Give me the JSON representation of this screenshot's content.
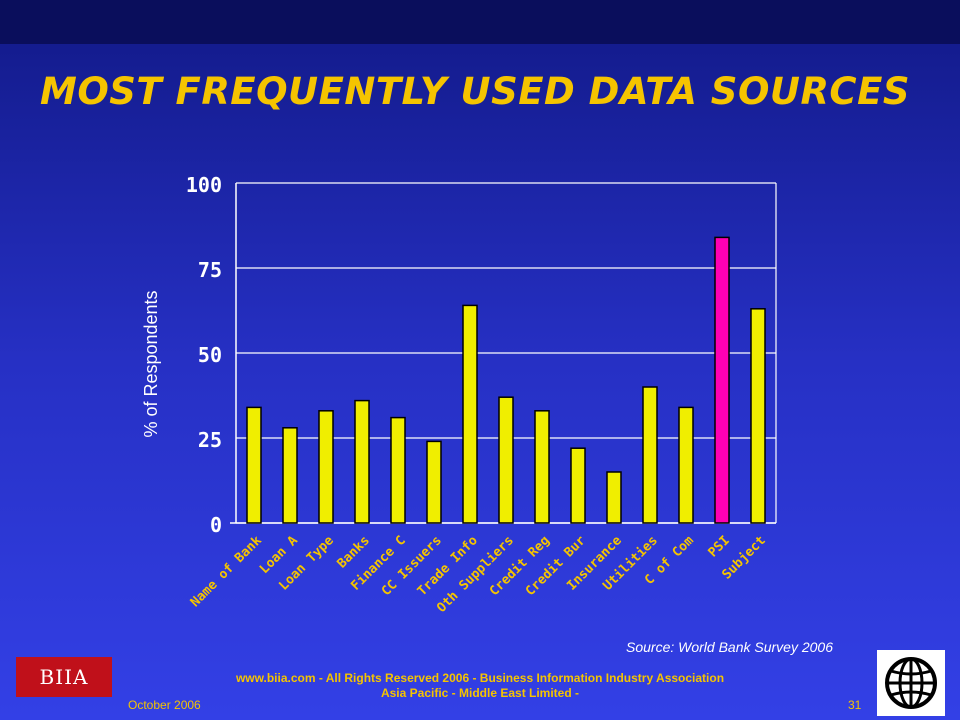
{
  "title": "MOST FREQUENTLY USED DATA SOURCES",
  "source_note": "Source: World Bank Survey 2006",
  "footer": {
    "line1": "www.biia.com  - All Rights Reserved 2006 -  Business Information Industry Association",
    "line2": "Asia Pacific - Middle East Limited -",
    "date": "October  2006",
    "page": "31"
  },
  "logos": {
    "left_text": "BIIA",
    "left_color": "#c0101a",
    "right_icon": "world-bank-globe-icon"
  },
  "colors": {
    "title": "#f5c400",
    "bar": "#f0ee00",
    "highlight_bar": "#ff00b4",
    "gridline": "#ffffff"
  },
  "chart_data": {
    "type": "bar",
    "title": "",
    "xlabel": "",
    "ylabel": "% of Respondents",
    "ylim": [
      0,
      100
    ],
    "yticks": [
      0,
      25,
      50,
      75,
      100
    ],
    "grid": true,
    "categories": [
      "Name of Bank",
      "Loan A",
      "Loan Type",
      "Banks",
      "Finance C",
      "CC Issuers",
      "Trade Info",
      "Oth Suppliers",
      "Credit Reg",
      "Credit Bur",
      "Insurance",
      "Utilities",
      "C of Com",
      "PSI",
      "Subject"
    ],
    "values": [
      34,
      28,
      33,
      36,
      31,
      24,
      64,
      37,
      33,
      22,
      15,
      40,
      34,
      84,
      63
    ],
    "highlight": "PSI"
  }
}
